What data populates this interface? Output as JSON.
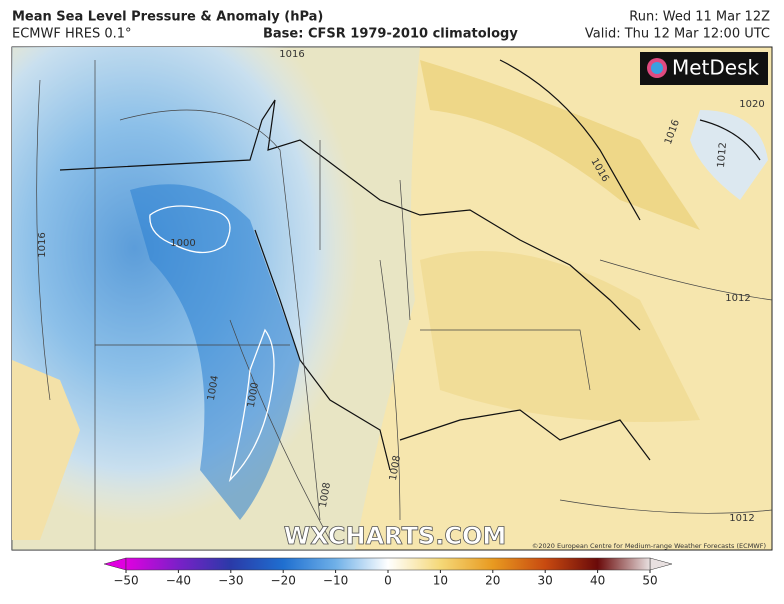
{
  "header": {
    "title": "Mean Sea Level Pressure & Anomaly (hPa)",
    "model": "ECMWF HRES 0.1°",
    "base": "Base: CFSR 1979-2010 climatology",
    "run": "Run: Wed 11 Mar 12Z",
    "valid": "Valid: Thu 12 Mar 12:00 UTC"
  },
  "map": {
    "logo": "MetDesk",
    "watermark": "WXCHARTS.COM",
    "copyright": "©2020 European Centre for Medium-range Weather Forecasts (ECMWF)",
    "contour_labels": [
      "1016",
      "1016",
      "1000",
      "1004",
      "1000",
      "1008",
      "1008",
      "1012",
      "1012",
      "1016",
      "1012",
      "1016",
      "1020"
    ]
  },
  "colorbar": {
    "range": [
      -50,
      50
    ],
    "ticks": [
      {
        "value": -50,
        "label": "−50"
      },
      {
        "value": -40,
        "label": "−40"
      },
      {
        "value": -30,
        "label": "−30"
      },
      {
        "value": -20,
        "label": "−20"
      },
      {
        "value": -10,
        "label": "−10"
      },
      0,
      10,
      20,
      30,
      40,
      50
    ]
  }
}
